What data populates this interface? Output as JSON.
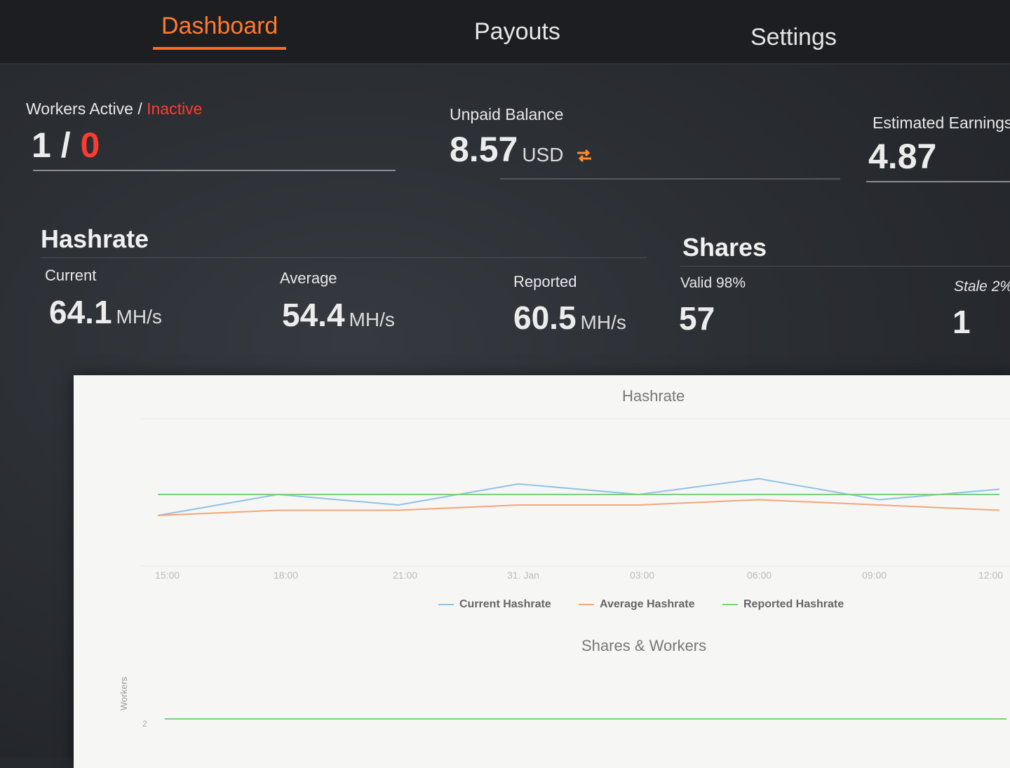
{
  "nav": {
    "tabs": [
      {
        "label": "Dashboard"
      },
      {
        "label": "Payouts"
      },
      {
        "label": "Settings"
      }
    ]
  },
  "summary": {
    "workers": {
      "label_active": "Workers Active /",
      "label_inactive": "Inactive",
      "active": "1",
      "sep": "/",
      "inactive": "0"
    },
    "unpaid": {
      "label": "Unpaid Balance",
      "value": "8.57",
      "currency": "USD"
    },
    "estimated": {
      "label": "Estimated Earnings",
      "value": "4.87"
    }
  },
  "hashrate": {
    "title": "Hashrate",
    "current": {
      "label": "Current",
      "value": "64.1",
      "unit": "MH/s"
    },
    "average": {
      "label": "Average",
      "value": "54.4",
      "unit": "MH/s"
    },
    "reported": {
      "label": "Reported",
      "value": "60.5",
      "unit": "MH/s"
    }
  },
  "shares": {
    "title": "Shares",
    "valid": {
      "label": "Valid 98%",
      "value": "57"
    },
    "stale": {
      "label": "Stale 2%",
      "value": "1"
    }
  },
  "colors": {
    "accent": "#ff6d1f",
    "inactive": "#ff3b30",
    "current": "#8ec3e6",
    "average": "#f2a77a",
    "reported": "#7ccf7c"
  },
  "chart_data": [
    {
      "type": "line",
      "title": "Hashrate",
      "x": [
        "15:00",
        "18:00",
        "21:00",
        "31. Jan",
        "03:00",
        "06:00",
        "09:00",
        "12:00"
      ],
      "series": [
        {
          "name": "Current Hashrate",
          "values": [
            56,
            60,
            58,
            62,
            60,
            63,
            59,
            61
          ]
        },
        {
          "name": "Average Hashrate",
          "values": [
            56,
            57,
            57,
            58,
            58,
            59,
            58,
            57
          ]
        },
        {
          "name": "Reported Hashrate",
          "values": [
            60,
            60,
            60,
            60,
            60,
            60,
            60,
            60
          ]
        }
      ],
      "legend": "bottom"
    },
    {
      "type": "line",
      "title": "Shares & Workers",
      "ylabel": "Workers",
      "yticks": [
        "2"
      ],
      "series": [
        {
          "name": "",
          "values": [
            2,
            2,
            2,
            2,
            2,
            2,
            2,
            2
          ]
        }
      ]
    }
  ]
}
